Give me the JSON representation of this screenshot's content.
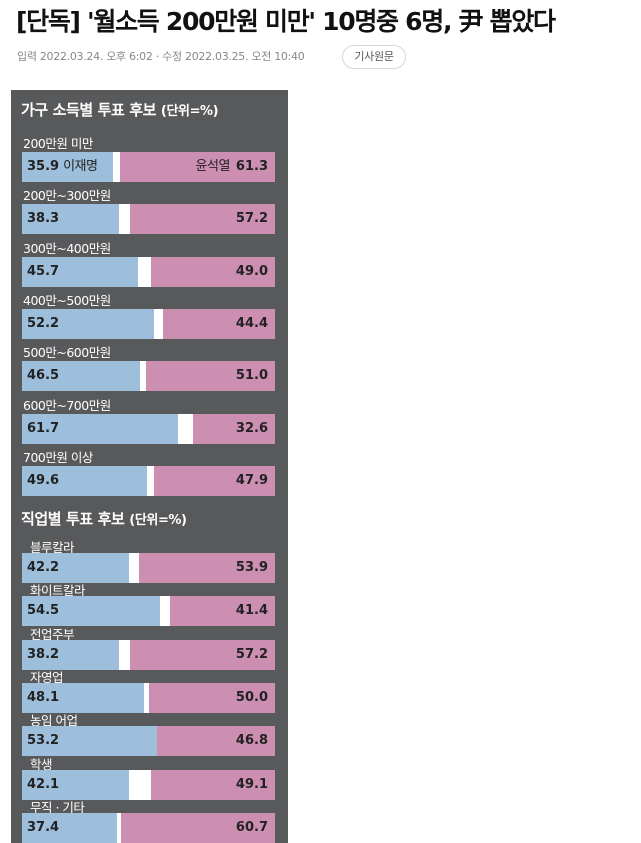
{
  "article": {
    "headline": "[단독] '월소득 200만원 미만' 10명중 6명, 尹 뽑았다",
    "input_label": "입력",
    "input_date": "2022.03.24. 오후 6:02",
    "separator": "·",
    "modify_label": "수정",
    "modify_date": "2022.03.25. 오전 10:40",
    "source_button": "기사원문"
  },
  "colors": {
    "lee": "#9dbfdc",
    "yoon": "#cc8fb2",
    "panel": "#58595b"
  },
  "candidates": {
    "left": "이재명",
    "right": "윤석열"
  },
  "chart_data": [
    {
      "type": "bar",
      "title": "가구 소득별 투표 후보",
      "unit": "(단위=%)",
      "categories": [
        "200만원 미만",
        "200만~300만원",
        "300만~400만원",
        "400만~500만원",
        "500만~600만원",
        "600만~700만원",
        "700만원 이상"
      ],
      "series": [
        {
          "name": "이재명",
          "values": [
            "35.9",
            "38.3",
            "45.7",
            "52.2",
            "46.5",
            "61.7",
            "49.6"
          ]
        },
        {
          "name": "윤석열",
          "values": [
            "61.3",
            "57.2",
            "49.0",
            "44.4",
            "51.0",
            "32.6",
            "47.9"
          ]
        }
      ]
    },
    {
      "type": "bar",
      "title": "직업별 투표 후보",
      "unit": "(단위=%)",
      "categories": [
        "블루칼라",
        "화이트칼라",
        "전업주부",
        "자영업",
        "농임 어업",
        "학생",
        "무직 · 기타"
      ],
      "series": [
        {
          "name": "이재명",
          "values": [
            "42.2",
            "54.5",
            "38.2",
            "48.1",
            "53.2",
            "42.1",
            "37.4"
          ]
        },
        {
          "name": "윤석열",
          "values": [
            "53.9",
            "41.4",
            "57.2",
            "50.0",
            "46.8",
            "49.1",
            "60.7"
          ]
        }
      ]
    }
  ]
}
